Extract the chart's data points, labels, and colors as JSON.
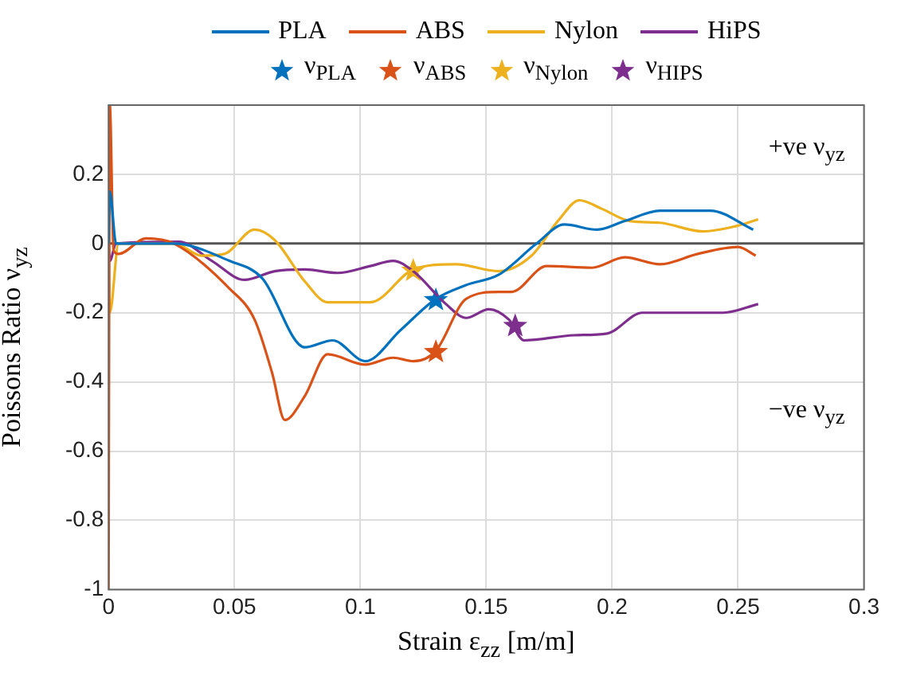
{
  "chart_data": {
    "type": "line",
    "xlabel": "Strain ε$_{zz}$ [m/m]",
    "ylabel": "Poissons Ratio ν$_{yz}$",
    "xlim": [
      0,
      0.3
    ],
    "ylim": [
      -1,
      0.4
    ],
    "xticks": [
      0,
      0.05,
      0.1,
      0.15,
      0.2,
      0.25,
      0.3
    ],
    "yticks": [
      -1,
      -0.8,
      -0.6,
      -0.4,
      -0.2,
      0,
      0.2
    ],
    "grid": true,
    "legend": "top",
    "line_style": "solid",
    "marker": "none",
    "annotations": [
      "+ve ν$_{yz}$",
      "−ve ν$_{yz}$"
    ],
    "ref_lines": [
      {
        "axis": "y",
        "value": 0,
        "color": "#555555"
      }
    ],
    "series": [
      {
        "name": "PLA",
        "color": "#0072bd",
        "x": [
          0,
          0.0005,
          0.003,
          0.026,
          0.048,
          0.061,
          0.078,
          0.089,
          0.102,
          0.116,
          0.13,
          0.142,
          0.155,
          0.17,
          0.181,
          0.194,
          0.205,
          0.219,
          0.239,
          0.256
        ],
        "values": [
          0,
          0.15,
          0,
          0,
          -0.05,
          -0.1,
          -0.3,
          -0.28,
          -0.34,
          -0.25,
          -0.16,
          -0.12,
          -0.09,
          0,
          0.055,
          0.04,
          0.065,
          0.095,
          0.095,
          0.04
        ]
      },
      {
        "name": "ABS",
        "color": "#d95319",
        "x": [
          0,
          0.0005,
          0.002,
          0.004,
          0.015,
          0.026,
          0.048,
          0.058,
          0.065,
          0.07,
          0.078,
          0.087,
          0.102,
          0.113,
          0.121,
          0.13,
          0.142,
          0.155,
          0.16,
          0.174,
          0.192,
          0.205,
          0.219,
          0.234,
          0.25,
          0.257
        ],
        "values": [
          -1,
          0.4,
          -0.02,
          -0.03,
          0.015,
          0,
          -0.13,
          -0.22,
          -0.375,
          -0.51,
          -0.44,
          -0.32,
          -0.35,
          -0.33,
          -0.34,
          -0.31,
          -0.16,
          -0.14,
          -0.14,
          -0.065,
          -0.07,
          -0.04,
          -0.06,
          -0.03,
          -0.01,
          -0.035
        ]
      },
      {
        "name": "Nylon",
        "color": "#edb120",
        "x": [
          0,
          0.0005,
          0.004,
          0.026,
          0.037,
          0.046,
          0.058,
          0.066,
          0.078,
          0.087,
          0.104,
          0.121,
          0.138,
          0.155,
          0.168,
          0.179,
          0.187,
          0.196,
          0.207,
          0.219,
          0.236,
          0.249,
          0.258
        ],
        "values": [
          0,
          -0.2,
          0,
          0,
          -0.035,
          -0.03,
          0.04,
          0.01,
          -0.11,
          -0.17,
          -0.17,
          -0.075,
          -0.06,
          -0.08,
          -0.035,
          0.07,
          0.125,
          0.1,
          0.065,
          0.06,
          0.035,
          0.05,
          0.07
        ]
      },
      {
        "name": "HiPS",
        "color": "#7e2f8e",
        "x": [
          0,
          0.0005,
          0.003,
          0.028,
          0.041,
          0.054,
          0.066,
          0.078,
          0.091,
          0.104,
          0.113,
          0.121,
          0.134,
          0.142,
          0.151,
          0.159,
          0.165,
          0.185,
          0.198,
          0.212,
          0.229,
          0.244,
          0.258
        ],
        "values": [
          0,
          -0.05,
          0,
          0.005,
          -0.05,
          -0.105,
          -0.08,
          -0.075,
          -0.085,
          -0.065,
          -0.05,
          -0.08,
          -0.175,
          -0.215,
          -0.19,
          -0.22,
          -0.28,
          -0.265,
          -0.26,
          -0.2,
          -0.2,
          -0.2,
          -0.175
        ]
      },
      {
        "name": "ν$_{PLA}$",
        "type": "scatter",
        "color": "#0072bd",
        "marker": "star",
        "x": [
          0.13
        ],
        "values": [
          -0.16
        ]
      },
      {
        "name": "ν$_{ABS}$",
        "type": "scatter",
        "color": "#d95319",
        "marker": "star",
        "x": [
          0.13
        ],
        "values": [
          -0.31
        ]
      },
      {
        "name": "ν$_{Nylon}$",
        "type": "scatter",
        "color": "#edb120",
        "marker": "star",
        "x": [
          0.121
        ],
        "values": [
          -0.075
        ]
      },
      {
        "name": "ν$_{HIPS}$",
        "type": "scatter",
        "color": "#7e2f8e",
        "marker": "star",
        "x": [
          0.1615
        ],
        "values": [
          -0.235
        ]
      }
    ]
  }
}
